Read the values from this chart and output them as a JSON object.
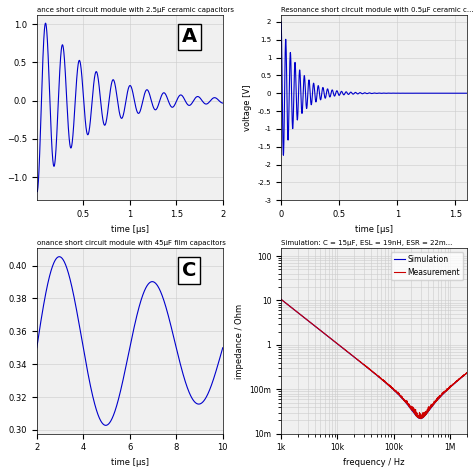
{
  "panel_A": {
    "title": "ance short circuit module with 2.5μF ceramic capacitors",
    "xlabel": "time [μs]",
    "ylabel": "",
    "xlim": [
      0,
      2
    ],
    "freq": 5.5,
    "decay": 1.8,
    "amplitude": 1.2,
    "label": "A",
    "color": "#0000CC"
  },
  "panel_B": {
    "title": "Resonance short circuit module with 0.5μF ceramic c...",
    "xlabel": "time [μs]",
    "ylabel": "voltage [V]",
    "xlim": [
      0,
      1.6
    ],
    "ylim": [
      -3,
      2.2
    ],
    "freq": 25.0,
    "decay": 7.0,
    "amplitude": 2.0,
    "color": "#0000CC"
  },
  "panel_C": {
    "title": "onance short circuit module with 45μF film capacitors",
    "xlabel": "time [μs]",
    "ylabel": "",
    "xlim": [
      2,
      10
    ],
    "freq": 0.25,
    "decay": 0.08,
    "amplitude": 0.06,
    "baseline": 0.35,
    "label": "C",
    "color": "#0000CC"
  },
  "panel_D": {
    "title": "Simulation: C = 15μF, ESL = 19nH, ESR = 22m...",
    "xlabel": "frequency / Hz",
    "ylabel": "impedance / Ohm",
    "C": 1.5e-05,
    "L": 1.9e-08,
    "R": 0.022,
    "color_sim": "#0000CC",
    "color_meas": "#CC0000",
    "legend": [
      "Simulation",
      "Measurement"
    ]
  },
  "bg_color": "#f0f0f0",
  "grid_color": "#cccccc",
  "line_color": "#0000CC"
}
